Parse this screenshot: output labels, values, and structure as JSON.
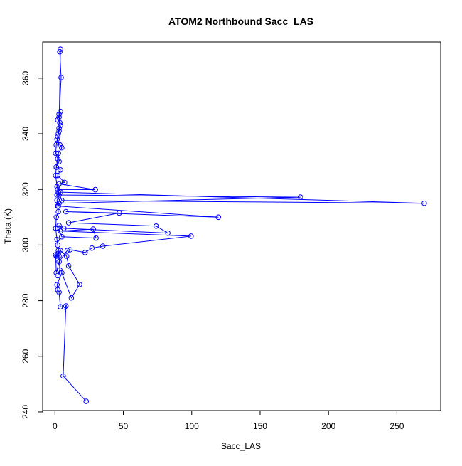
{
  "chart_data": {
    "type": "scatter",
    "title": "ATOM2 Northbound Sacc_LAS",
    "xlabel": "Sacc_LAS",
    "ylabel": "Theta (K)",
    "xlim": [
      -9,
      282
    ],
    "ylim": [
      240.5,
      373
    ],
    "x_ticks": [
      0,
      50,
      100,
      150,
      200,
      250
    ],
    "y_ticks": [
      240,
      260,
      280,
      300,
      320,
      340,
      360
    ],
    "series_color": "#0000ff",
    "lines_connect_points": true,
    "grid": false,
    "legend": "none",
    "series": [
      {
        "x": [
          22.8,
          6.0,
          8.0,
          7.0,
          4.0,
          3.0,
          2.0,
          1.5,
          5.0,
          12.0,
          18.0,
          10.0,
          8.5,
          4.0,
          2.5,
          1.0,
          0.5,
          1.0,
          3.0,
          9.0,
          11.0,
          22.0,
          27.0,
          35.0,
          99.5,
          4.0,
          28.0,
          30.0,
          5.0,
          2.0,
          3.0,
          6.5,
          82.5,
          74.0,
          10.0,
          47.0,
          8.0,
          119.5,
          2.5,
          3.0,
          179.5,
          1.5,
          4.0,
          270.0,
          5.0,
          2.0,
          29.5,
          3.0,
          7.0,
          2.0,
          4.0,
          1.0,
          3.0,
          2.5,
          5.0,
          3.5,
          1.5,
          2.5,
          3.0,
          4.0,
          3.5,
          2.0,
          3.0,
          4.0,
          3.0,
          4.5,
          3.5,
          4.0,
          3.0,
          2.0,
          1.0,
          0.5,
          2.0,
          1.0,
          0.5,
          1.5,
          2.5,
          3.0,
          1.5,
          2.0,
          2.5,
          1.0,
          0.5,
          1.5,
          2.0,
          2.5,
          3.0,
          3.5,
          2.0
        ],
        "y": [
          243.8,
          252.9,
          278.1,
          277.7,
          277.8,
          283.0,
          283.9,
          285.7,
          290.0,
          281.0,
          285.8,
          292.5,
          296.0,
          298.0,
          297.0,
          296.0,
          296.5,
          290.0,
          294.0,
          298.0,
          298.3,
          297.3,
          298.9,
          299.6,
          303.2,
          305.0,
          305.7,
          302.5,
          303.0,
          306.0,
          307.0,
          306.0,
          304.3,
          306.8,
          308.0,
          311.5,
          312.0,
          310.0,
          314.0,
          315.0,
          317.2,
          318.0,
          319.0,
          315.0,
          316.0,
          320.0,
          319.9,
          322.0,
          322.5,
          325.0,
          327.0,
          328.0,
          330.0,
          333.0,
          335.0,
          336.0,
          338.0,
          340.0,
          341.0,
          343.0,
          344.0,
          345.0,
          347.0,
          348.0,
          346.0,
          360.2,
          369.5,
          370.4,
          342.0,
          339.0,
          336.0,
          333.0,
          331.0,
          328.0,
          325.0,
          321.0,
          319.0,
          318.0,
          316.0,
          314.0,
          312.0,
          310.0,
          306.0,
          302.0,
          300.0,
          298.0,
          296.0,
          291.0,
          289.0
        ]
      }
    ]
  }
}
